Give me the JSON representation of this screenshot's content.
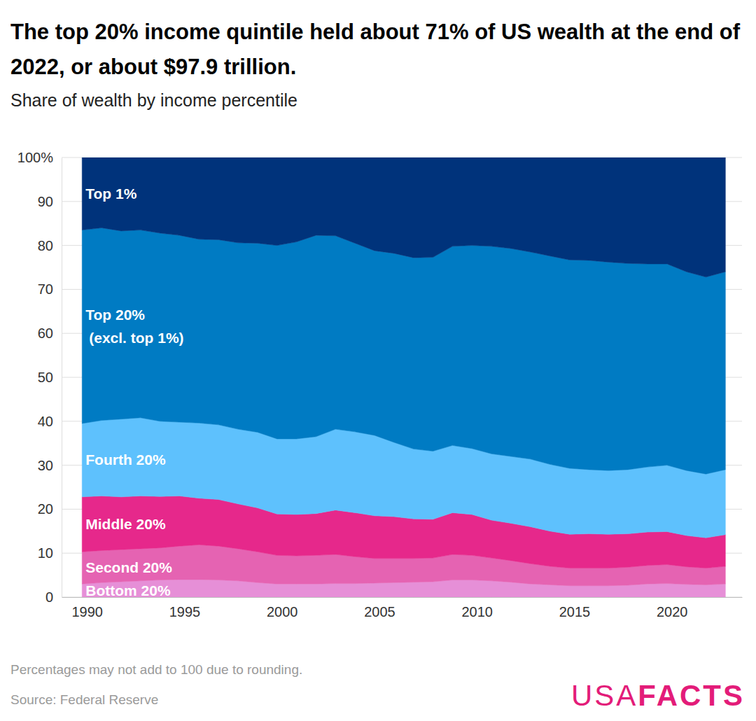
{
  "chart_data": {
    "type": "area",
    "stacked": true,
    "grid": true,
    "title": "The top 20% income quintile held about 71% of US wealth at the end of 2022, or about $97.9 trillion.",
    "subtitle": "Share of wealth by income percentile",
    "note": "Percentages may not add to 100 due to rounding.",
    "source": "Source: Federal Reserve",
    "logo": {
      "light": "USA",
      "bold": "FACTS"
    },
    "x": [
      1989.75,
      1990.75,
      1991.75,
      1992.75,
      1993.75,
      1994.75,
      1995.75,
      1996.75,
      1997.75,
      1998.75,
      1999.75,
      2000.75,
      2001.75,
      2002.75,
      2003.75,
      2004.75,
      2005.75,
      2006.75,
      2007.75,
      2008.75,
      2009.75,
      2010.75,
      2011.75,
      2012.75,
      2013.75,
      2014.75,
      2015.75,
      2016.75,
      2017.75,
      2018.75,
      2019.75,
      2020.75,
      2021.75,
      2022.75
    ],
    "xlim": [
      1988.7,
      2023.6
    ],
    "xticks": [
      1990,
      1995,
      2000,
      2005,
      2010,
      2015,
      2020
    ],
    "ylim": [
      0,
      100
    ],
    "yticks": [
      0,
      10,
      20,
      30,
      40,
      50,
      60,
      70,
      80,
      90,
      {
        "value": 100,
        "label": "100%"
      }
    ],
    "series": [
      {
        "name": "Bottom 20%",
        "color": "#e68fd7",
        "values": [
          3.0,
          3.3,
          3.5,
          3.7,
          3.9,
          4.0,
          4.0,
          3.9,
          3.7,
          3.3,
          3.0,
          3.0,
          3.0,
          3.1,
          3.1,
          3.2,
          3.3,
          3.4,
          3.5,
          3.9,
          3.9,
          3.7,
          3.4,
          3.0,
          2.8,
          2.6,
          2.6,
          2.6,
          2.7,
          3.0,
          3.1,
          2.9,
          2.8,
          3.0
        ]
      },
      {
        "name": "Second 20%",
        "color": "#e563b2",
        "values": [
          7.3,
          7.3,
          7.3,
          7.3,
          7.3,
          7.6,
          7.9,
          7.7,
          7.3,
          7.0,
          6.5,
          6.4,
          6.5,
          6.6,
          6.1,
          5.6,
          5.5,
          5.4,
          5.4,
          5.8,
          5.6,
          5.2,
          4.9,
          4.6,
          4.2,
          4.0,
          4.0,
          4.0,
          4.1,
          4.2,
          4.3,
          4.0,
          3.8,
          4.0
        ]
      },
      {
        "name": "Middle 20%",
        "color": "#e6288b",
        "values": [
          12.5,
          12.4,
          12.0,
          12.0,
          11.7,
          11.4,
          10.6,
          10.6,
          10.2,
          10.0,
          9.4,
          9.4,
          9.5,
          10.1,
          10.0,
          9.7,
          9.5,
          9.0,
          8.8,
          9.5,
          9.3,
          8.6,
          8.5,
          8.4,
          8.0,
          7.7,
          7.8,
          7.7,
          7.6,
          7.6,
          7.5,
          7.1,
          6.9,
          7.2
        ]
      },
      {
        "name": "Fourth 20%",
        "color": "#5ec1fd",
        "values": [
          16.7,
          17.2,
          17.7,
          17.8,
          17.1,
          16.8,
          17.1,
          17.0,
          17.0,
          17.2,
          17.1,
          17.2,
          17.5,
          18.4,
          18.4,
          18.3,
          16.9,
          15.9,
          15.5,
          15.3,
          15.0,
          15.1,
          15.2,
          15.4,
          15.2,
          15.0,
          14.6,
          14.5,
          14.6,
          14.8,
          15.1,
          14.8,
          14.5,
          14.8
        ]
      },
      {
        "name": "Top 20% (excl. top 1%)",
        "color": "#007bc3",
        "values": [
          44.0,
          43.8,
          42.8,
          42.7,
          42.8,
          42.5,
          41.8,
          42.1,
          42.4,
          43.0,
          44.0,
          44.8,
          45.8,
          44.0,
          42.9,
          42.0,
          43.0,
          43.5,
          44.1,
          45.3,
          46.2,
          47.2,
          47.3,
          47.1,
          47.4,
          47.4,
          47.6,
          47.4,
          46.9,
          46.2,
          45.8,
          45.2,
          44.8,
          45.0
        ]
      },
      {
        "name": "Top 1%",
        "color": "#00337b",
        "values": [
          16.5,
          16.0,
          16.7,
          16.5,
          17.2,
          17.7,
          18.6,
          18.7,
          19.4,
          19.5,
          20.0,
          19.2,
          17.7,
          17.8,
          19.5,
          21.2,
          21.8,
          22.8,
          22.7,
          20.2,
          20.0,
          20.2,
          20.7,
          21.5,
          22.4,
          23.3,
          23.4,
          23.8,
          24.1,
          24.2,
          24.2,
          26.0,
          27.2,
          26.0
        ]
      }
    ]
  }
}
